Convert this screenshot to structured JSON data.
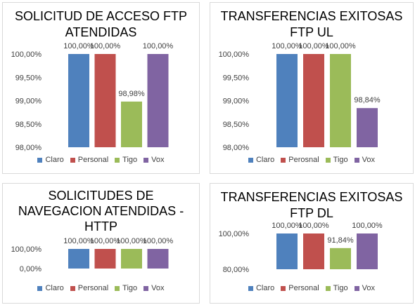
{
  "chart_data": [
    {
      "type": "bar",
      "title": "SOLICITUD DE ACCESO FTP\nATENDIDAS",
      "categories": [
        "Claro",
        "Personal",
        "Tigo",
        "Vox"
      ],
      "values": [
        100.0,
        100.0,
        98.98,
        100.0
      ],
      "data_labels": [
        "100,00%",
        "100,00%",
        "98,98%",
        "100,00%"
      ],
      "yticks": [
        "100,00%",
        "99,50%",
        "99,00%",
        "98,50%",
        "98,00%"
      ],
      "ylim": [
        98.0,
        100.0
      ],
      "legend": [
        "Claro",
        "Personal",
        "Tigo",
        "Vox"
      ],
      "legend_position": "bottom",
      "grid": false
    },
    {
      "type": "bar",
      "title": "TRANSFERENCIAS EXITOSAS\nFTP UL",
      "categories": [
        "Claro",
        "Perosnal",
        "Tigo",
        "Vox"
      ],
      "values": [
        100.0,
        100.0,
        100.0,
        98.84
      ],
      "data_labels": [
        "100,00%",
        "100,00%",
        "100,00%",
        "98,84%"
      ],
      "yticks": [
        "100,00%",
        "99,50%",
        "99,00%",
        "98,50%",
        "98,00%"
      ],
      "ylim": [
        98.0,
        100.0
      ],
      "legend": [
        "Claro",
        "Perosnal",
        "Tigo",
        "Vox"
      ],
      "legend_position": "bottom",
      "grid": false
    },
    {
      "type": "bar",
      "title": "SOLICITUDES DE\nNAVEGACION ATENDIDAS -\nHTTP",
      "categories": [
        "Claro",
        "Personal",
        "Tigo",
        "Vox"
      ],
      "values": [
        100.0,
        100.0,
        100.0,
        100.0
      ],
      "data_labels": [
        "100,00%",
        "100,00%",
        "100,00%",
        "100,00%"
      ],
      "yticks": [
        "100,00%",
        "0,00%"
      ],
      "ylim": [
        0.0,
        100.0
      ],
      "legend": [
        "Claro",
        "Personal",
        "Tigo",
        "Vox"
      ],
      "legend_position": "bottom",
      "grid": false
    },
    {
      "type": "bar",
      "title": "TRANSFERENCIAS EXITOSAS\nFTP DL",
      "categories": [
        "Claro",
        "Personal",
        "Tigo",
        "Vox"
      ],
      "values": [
        100.0,
        100.0,
        91.84,
        100.0
      ],
      "data_labels": [
        "100,00%",
        "100,00%",
        "91,84%",
        "100,00%"
      ],
      "yticks": [
        "100,00%",
        "80,00%"
      ],
      "ylim": [
        80.0,
        100.0
      ],
      "legend": [
        "Claro",
        "Personal",
        "Tigo",
        "Vox"
      ],
      "legend_position": "bottom",
      "grid": false
    }
  ],
  "colors": {
    "claro": "#4f81bd",
    "personal": "#c0504d",
    "tigo": "#9bbb59",
    "vox": "#8064a2"
  }
}
